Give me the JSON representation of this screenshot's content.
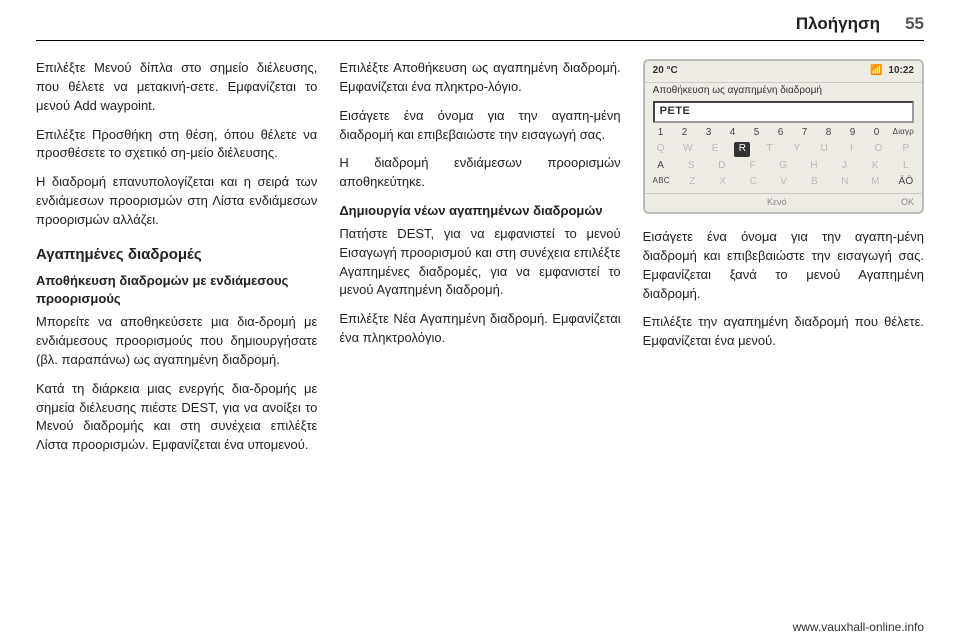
{
  "header": {
    "title": "Πλοήγηση",
    "page": "55"
  },
  "col1": {
    "p1": "Επιλέξτε Μενού δίπλα στο σημείο διέλευσης, που θέλετε να μετακινή‐σετε. Εμφανίζεται το μενού Add waypoint.",
    "p2": "Επιλέξτε Προσθήκη στη θέση, όπου θέλετε να προσθέσετε το σχετικό ση‐μείο διέλευσης.",
    "p3": "Η διαδρομή επανυπολογίζεται και η σειρά των ενδιάμεσων προορισμών στη Λίστα ενδιάμεσων προορισμών αλλάζει.",
    "h1": "Αγαπημένες διαδρομές",
    "sub1": "Αποθήκευση διαδρομών με ενδιάμεσους προορισμούς",
    "p4": "Μπορείτε να αποθηκεύσετε μια δια‐δρομή με ενδιάμεσους προορισμούς που δημιουργήσατε (βλ. παραπάνω) ως αγαπημένη διαδρομή.",
    "p5": "Κατά τη διάρκεια μιας ενεργής δια‐δρομής με σημεία διέλευσης πιέστε DEST, για να ανοίξει το Μενού διαδρομής και στη συνέχεια επιλέξτε Λίστα προορισμών. Εμφανίζεται ένα υπομενού."
  },
  "col2": {
    "p1": "Επιλέξτε Αποθήκευση ως αγαπημένη διαδρομή. Εμφανίζεται ένα πληκτρο‐λόγιο.",
    "p2": "Εισάγετε ένα όνομα για την αγαπη‐μένη διαδρομή και επιβεβαιώστε την εισαγωγή σας.",
    "p3": "Η διαδρομή ενδιάμεσων προορισμών αποθηκεύτηκε.",
    "sub1": "Δημιουργία νέων αγαπημένων διαδρομών",
    "p4": "Πατήστε DEST, για να εμφανιστεί το μενού Εισαγωγή προορισμού και στη συνέχεια επιλέξτε Αγαπημένες διαδρομές, για να εμφανιστεί το μενού Αγαπημένη διαδρομή.",
    "p5": "Επιλέξτε Νέα Αγαπημένη διαδρομή. Εμφανίζεται ένα πληκτρολόγιο."
  },
  "col3": {
    "p1": "Εισάγετε ένα όνομα για την αγαπη‐μένη διαδρομή και επιβεβαιώστε την εισαγωγή σας. Εμφανίζεται ξανά το μενού Αγαπημένη διαδρομή.",
    "p2": "Επιλέξτε την αγαπημένη διαδρομή που θέλετε. Εμφανίζεται ένα μενού."
  },
  "device": {
    "status": {
      "temp": "20 °C",
      "time": "10:22"
    },
    "title": "Αποθήκευση ως αγαπημένη διαδρομή",
    "field_value": "PETE",
    "rows": [
      {
        "keys": [
          "1",
          "2",
          "3",
          "4",
          "5",
          "6",
          "7",
          "8",
          "9",
          "0",
          "Διαγρ"
        ],
        "dims": [
          false,
          false,
          false,
          false,
          false,
          false,
          false,
          false,
          false,
          false,
          false
        ],
        "hl": [
          false,
          false,
          false,
          false,
          false,
          false,
          false,
          false,
          false,
          false,
          false
        ]
      },
      {
        "keys": [
          "Q",
          "W",
          "E",
          "R",
          "T",
          "Y",
          "U",
          "I",
          "O",
          "P"
        ],
        "dims": [
          true,
          true,
          true,
          false,
          true,
          true,
          true,
          true,
          true,
          true
        ],
        "hl": [
          false,
          false,
          false,
          true,
          false,
          false,
          false,
          false,
          false,
          false
        ]
      },
      {
        "keys": [
          "A",
          "S",
          "D",
          "F",
          "G",
          "H",
          "J",
          "K",
          "L"
        ],
        "dims": [
          false,
          true,
          true,
          true,
          true,
          true,
          true,
          true,
          true
        ],
        "hl": [
          false,
          false,
          false,
          false,
          false,
          false,
          false,
          false,
          false
        ]
      },
      {
        "keys": [
          "ABC",
          "Z",
          "X",
          "C",
          "V",
          "B",
          "N",
          "M",
          "ÄÖ"
        ],
        "dims": [
          false,
          true,
          true,
          true,
          true,
          true,
          true,
          true,
          false
        ],
        "hl": [
          false,
          false,
          false,
          false,
          false,
          false,
          false,
          false,
          false
        ]
      }
    ],
    "bottom": {
      "left": "",
      "center": "Κενό",
      "right": "OK"
    }
  },
  "footer": {
    "url": "www.vauxhall-online.info"
  }
}
